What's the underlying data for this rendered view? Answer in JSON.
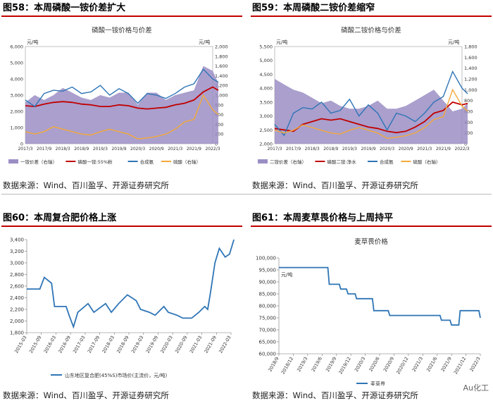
{
  "panels": {
    "p58": {
      "title": "图58：本周磷酸一铵价差扩大",
      "source": "数据来源：Wind、百川盈孚、开源证券研究所"
    },
    "p59": {
      "title": "图59：本周磷酸二铵价差缩窄",
      "source": "数据来源：Wind、百川盈孚、开源证券研究所"
    },
    "p60": {
      "title": "图60：本周复合肥价格上涨",
      "source": "数据来源：Wind、百川盈孚、开源证券研究所"
    },
    "p61": {
      "title": "图61：本周麦草畏价格与上周持平",
      "source": "数据来源：Wind、百川盈孚、开源证券研究所"
    }
  },
  "watermark": "Au化工",
  "chart_data": [
    {
      "id": "c58",
      "type": "line",
      "title": "磷酸一铵价格与价差",
      "y_unit_left": "元/吨",
      "y_unit_right": "元/吨",
      "x_ticks": [
        "2017/3",
        "2017/9",
        "2018/3",
        "2018/9",
        "2019/3",
        "2019/9",
        "2020/3",
        "2020/9",
        "2021/3",
        "2021/9",
        "2022/3"
      ],
      "ylim_left": [
        0,
        6000
      ],
      "yticks_left": [
        0,
        1000,
        2000,
        3000,
        4000,
        5000,
        6000
      ],
      "ylim_right": [
        0,
        2000
      ],
      "yticks_right": [
        0,
        200,
        400,
        600,
        800,
        1000,
        1200,
        1400,
        1600,
        1800,
        2000
      ],
      "x": [
        0,
        0.5,
        1,
        1.5,
        2,
        2.5,
        3,
        3.5,
        4,
        4.5,
        5,
        5.5,
        6,
        6.5,
        7,
        7.5,
        8,
        8.5,
        9,
        9.5,
        10,
        10.3
      ],
      "series": [
        {
          "name": "一铵价差（右轴）",
          "kind": "area",
          "axis": "right",
          "color": "#9b8ec4",
          "values": [
            850,
            1000,
            900,
            1000,
            1150,
            1050,
            950,
            900,
            1000,
            950,
            1050,
            1050,
            800,
            1050,
            1050,
            900,
            1000,
            1050,
            1100,
            1600,
            1500,
            1250
          ]
        },
        {
          "name": "磷酸一铵:55%粉",
          "kind": "line",
          "axis": "left",
          "color": "#c00000",
          "values": [
            2350,
            2300,
            2450,
            2550,
            2600,
            2550,
            2450,
            2400,
            2300,
            2300,
            2400,
            2350,
            2200,
            2150,
            2200,
            2250,
            2400,
            2500,
            2700,
            3200,
            3500,
            3300
          ]
        },
        {
          "name": "合成氨",
          "kind": "line",
          "axis": "left",
          "color": "#2e75b6",
          "values": [
            2700,
            2300,
            3100,
            3300,
            3250,
            3500,
            3100,
            3200,
            3600,
            3000,
            3400,
            3100,
            2500,
            3100,
            3000,
            2800,
            3100,
            3500,
            3700,
            4600,
            4000,
            3800
          ]
        },
        {
          "name": "硫酸（右轴）",
          "kind": "line",
          "axis": "right",
          "color": "#f4a93a",
          "values": [
            250,
            200,
            250,
            350,
            300,
            250,
            200,
            180,
            250,
            300,
            250,
            200,
            100,
            120,
            150,
            200,
            300,
            450,
            500,
            1000,
            700,
            600
          ]
        }
      ]
    },
    {
      "id": "c59",
      "type": "line",
      "title": "磷酸二铵价格与价差",
      "y_unit_left": "元/吨",
      "y_unit_right": "元/吨",
      "x_ticks": [
        "2017/3",
        "2017/9",
        "2018/3",
        "2018/9",
        "2019/3",
        "2019/9",
        "2020/3",
        "2020/9",
        "2021/3",
        "2021/9",
        "2022/3"
      ],
      "ylim_left": [
        2000,
        5500
      ],
      "yticks_left": [
        2000,
        2500,
        3000,
        3500,
        4000,
        4500,
        5000,
        5500
      ],
      "ylim_right": [
        0,
        1800
      ],
      "yticks_right": [
        0,
        200,
        400,
        600,
        800,
        1000,
        1200,
        1400,
        1600,
        1800
      ],
      "x": [
        0,
        0.5,
        1,
        1.5,
        2,
        2.5,
        3,
        3.5,
        4,
        4.5,
        5,
        5.5,
        6,
        6.5,
        7,
        7.5,
        8,
        8.5,
        9,
        9.5,
        10,
        10.3
      ],
      "series": [
        {
          "name": "二铵价差（右轴）",
          "kind": "area",
          "axis": "right",
          "color": "#9b8ec4",
          "values": [
            1200,
            1100,
            1000,
            950,
            850,
            750,
            800,
            700,
            650,
            650,
            700,
            800,
            650,
            650,
            700,
            800,
            900,
            1000,
            800,
            600,
            650,
            750
          ]
        },
        {
          "name": "磷酸二铵:净水",
          "kind": "line",
          "axis": "left",
          "color": "#c00000",
          "values": [
            2550,
            2500,
            2450,
            2700,
            2800,
            2900,
            2850,
            2900,
            2800,
            2700,
            2600,
            2550,
            2450,
            2400,
            2450,
            2600,
            2800,
            3100,
            3200,
            3500,
            3400,
            3450
          ]
        },
        {
          "name": "合成氨",
          "kind": "line",
          "axis": "left",
          "color": "#2e75b6",
          "values": [
            2700,
            2300,
            3100,
            3300,
            3250,
            3500,
            3100,
            3200,
            3600,
            3000,
            3400,
            3100,
            2500,
            3100,
            3000,
            2800,
            3100,
            3500,
            3700,
            4600,
            4000,
            3800
          ]
        },
        {
          "name": "硫酸（右轴）",
          "kind": "line",
          "axis": "right",
          "color": "#f4a93a",
          "values": [
            250,
            200,
            250,
            350,
            300,
            250,
            200,
            180,
            250,
            300,
            250,
            200,
            100,
            120,
            150,
            200,
            300,
            450,
            500,
            1000,
            700,
            600
          ]
        }
      ]
    },
    {
      "id": "c60",
      "type": "line",
      "title": "",
      "x_ticks": [
        "2015-03",
        "2015-09",
        "2016-03",
        "2016-09",
        "2017-03",
        "2017-09",
        "2018-03",
        "2018-09",
        "2019-03",
        "2019-09",
        "2020-03",
        "2020-09",
        "2021-03",
        "2021-09",
        "2022-03"
      ],
      "ylim": [
        1800,
        3400
      ],
      "yticks": [
        1800,
        2000,
        2200,
        2400,
        2600,
        2800,
        3000,
        3200,
        3400
      ],
      "x": [
        0,
        0.9,
        1.2,
        1.7,
        1.9,
        2.7,
        2.9,
        3.2,
        3.5,
        4.2,
        4.6,
        5.4,
        5.8,
        6.3,
        6.9,
        7.5,
        7.8,
        8.4,
        8.8,
        9.4,
        9.7,
        10.3,
        10.7,
        11.3,
        11.8,
        12.2,
        12.4,
        12.6,
        12.9,
        13.2,
        13.6,
        13.9,
        14.2
      ],
      "series": [
        {
          "name": "山东地区复合肥(45%S)市场价(主流价，元/吨)",
          "color": "#2e75b6",
          "values": [
            2550,
            2550,
            2750,
            2650,
            2250,
            2250,
            2100,
            1900,
            2150,
            2300,
            2150,
            2300,
            2150,
            2300,
            2450,
            2350,
            2200,
            2150,
            2100,
            2250,
            2150,
            2100,
            2050,
            2050,
            2150,
            2250,
            2200,
            2500,
            3000,
            3250,
            3100,
            3150,
            3400
          ]
        }
      ]
    },
    {
      "id": "c61",
      "type": "line",
      "title": "麦草畏价格",
      "y_unit": "元/吨",
      "x_ticks": [
        "2018/9",
        "2018/12",
        "2019/3",
        "2019/6",
        "2019/9",
        "2019/12",
        "2020/3",
        "2020/6",
        "2020/9",
        "2020/12",
        "2021/3",
        "2021/6",
        "2021/9",
        "2021/12",
        "2022/3"
      ],
      "ylim": [
        60000,
        100000
      ],
      "yticks": [
        60000,
        65000,
        70000,
        75000,
        80000,
        85000,
        90000,
        95000,
        100000
      ],
      "x": [
        0,
        3.4,
        3.5,
        4.2,
        4.3,
        4.7,
        4.8,
        5.3,
        5.4,
        6.5,
        6.6,
        7.6,
        7.7,
        11.2,
        11.3,
        11.9,
        12.0,
        12.5,
        12.6,
        13.9,
        14.0
      ],
      "series": [
        {
          "name": "麦草畏",
          "color": "#2e75b6",
          "values": [
            96000,
            96000,
            89000,
            89000,
            87000,
            87000,
            85000,
            85000,
            83000,
            83000,
            78000,
            78000,
            76000,
            76000,
            74000,
            74000,
            72000,
            72000,
            78000,
            78000,
            75000
          ]
        }
      ]
    }
  ]
}
